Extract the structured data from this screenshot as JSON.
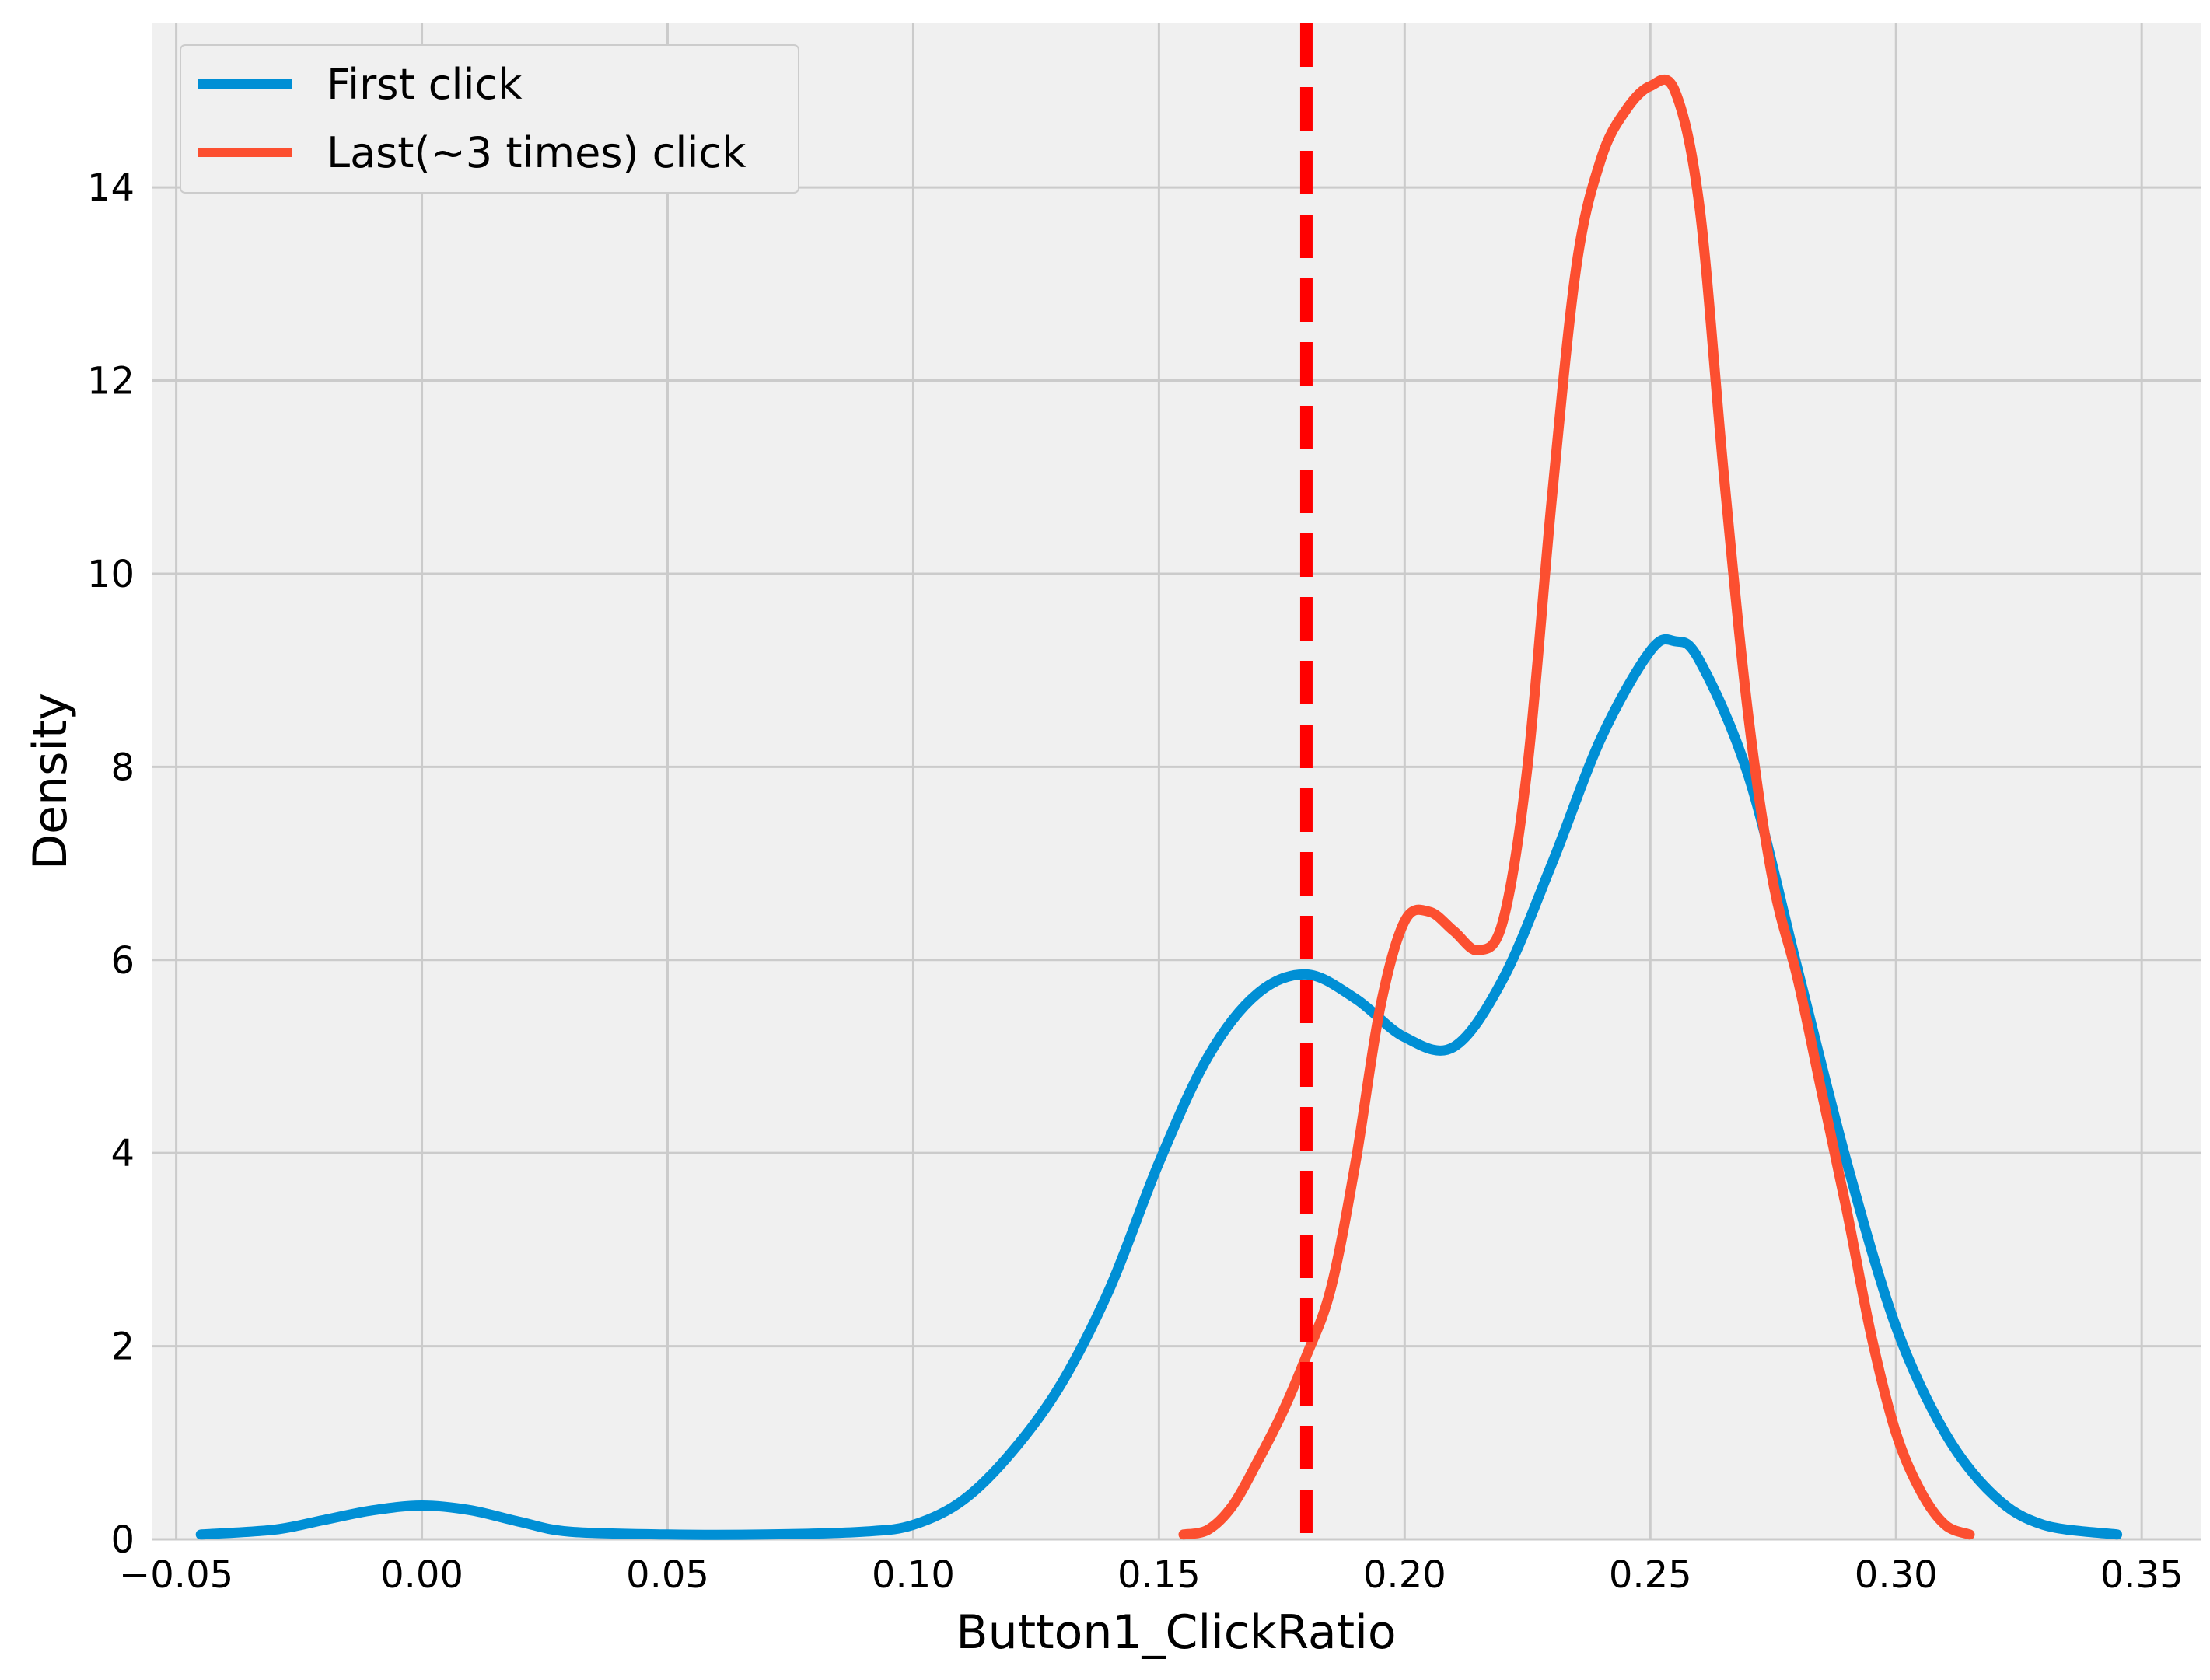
{
  "chart_data": {
    "type": "line",
    "title": "",
    "xlabel": "Button1_ClickRatio",
    "ylabel": "Density",
    "xlim": [
      -0.055,
      0.362
    ],
    "ylim": [
      0,
      15.7
    ],
    "xticks": [
      -0.05,
      0.0,
      0.05,
      0.1,
      0.15,
      0.2,
      0.25,
      0.3,
      0.35
    ],
    "xtick_labels": [
      "−0.05",
      "0.00",
      "0.05",
      "0.10",
      "0.15",
      "0.20",
      "0.25",
      "0.30",
      "0.35"
    ],
    "yticks": [
      0,
      2,
      4,
      6,
      8,
      10,
      12,
      14
    ],
    "ytick_labels": [
      "0",
      "2",
      "4",
      "6",
      "8",
      "10",
      "12",
      "14"
    ],
    "grid": true,
    "legend_position": "top-left",
    "background_color": "#f0f0f0",
    "grid_color": "#cbcbcb",
    "series": [
      {
        "name": "First click",
        "color": "#008fd5",
        "x": [
          -0.045,
          -0.03,
          -0.02,
          -0.01,
          0.0,
          0.01,
          0.02,
          0.03,
          0.05,
          0.07,
          0.09,
          0.1,
          0.11,
          0.12,
          0.13,
          0.14,
          0.15,
          0.16,
          0.17,
          0.18,
          0.19,
          0.2,
          0.21,
          0.22,
          0.23,
          0.24,
          0.25,
          0.255,
          0.26,
          0.27,
          0.28,
          0.29,
          0.3,
          0.31,
          0.32,
          0.33,
          0.345
        ],
        "y": [
          0.05,
          0.1,
          0.2,
          0.3,
          0.35,
          0.3,
          0.18,
          0.08,
          0.05,
          0.05,
          0.08,
          0.15,
          0.4,
          0.9,
          1.6,
          2.6,
          3.9,
          5.0,
          5.65,
          5.85,
          5.6,
          5.2,
          5.1,
          5.8,
          7.0,
          8.3,
          9.2,
          9.3,
          9.1,
          7.9,
          5.9,
          3.9,
          2.2,
          1.1,
          0.45,
          0.15,
          0.05
        ]
      },
      {
        "name": "Last(~3 times) click",
        "color": "#fc4f30",
        "x": [
          0.155,
          0.16,
          0.165,
          0.17,
          0.175,
          0.18,
          0.185,
          0.19,
          0.195,
          0.2,
          0.205,
          0.21,
          0.215,
          0.22,
          0.225,
          0.23,
          0.235,
          0.24,
          0.245,
          0.25,
          0.255,
          0.26,
          0.265,
          0.27,
          0.275,
          0.28,
          0.285,
          0.29,
          0.295,
          0.3,
          0.305,
          0.31,
          0.315
        ],
        "y": [
          0.05,
          0.1,
          0.35,
          0.8,
          1.3,
          1.9,
          2.6,
          3.9,
          5.5,
          6.4,
          6.5,
          6.3,
          6.1,
          6.4,
          8.0,
          10.8,
          13.2,
          14.3,
          14.8,
          15.05,
          15.0,
          13.8,
          11.0,
          8.5,
          6.8,
          5.8,
          4.6,
          3.4,
          2.1,
          1.1,
          0.5,
          0.15,
          0.05
        ]
      }
    ],
    "vline": {
      "x": 0.18,
      "color": "#ff0000",
      "style": "dashed"
    }
  }
}
